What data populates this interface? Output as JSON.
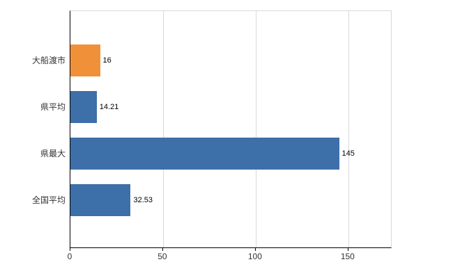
{
  "chart_data": {
    "type": "bar",
    "orientation": "horizontal",
    "title": "",
    "xlabel": "",
    "ylabel": "",
    "categories": [
      "大船渡市",
      "県平均",
      "県最大",
      "全国平均"
    ],
    "values": [
      16,
      14.21,
      145,
      32.53
    ],
    "value_labels": [
      "16",
      "14.21",
      "145",
      "32.53"
    ],
    "bar_colors": [
      "#f0913a",
      "#3d6fa8",
      "#3d6fa8",
      "#3d6fa8"
    ],
    "xlim": [
      0,
      173
    ],
    "xticks": [
      0,
      50,
      100,
      150
    ],
    "grid": true,
    "legend": "none",
    "colors": {
      "highlight_bar": "#f0913a",
      "default_bar": "#3d6fa8",
      "gridline": "#d9d9d9",
      "axis": "#000000",
      "background": "#ffffff"
    }
  }
}
